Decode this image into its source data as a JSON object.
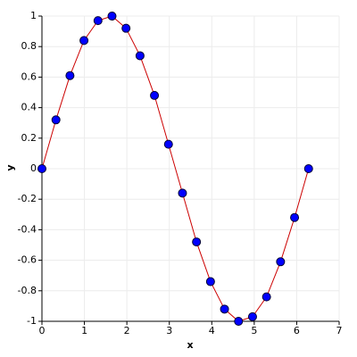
{
  "chart_data": {
    "type": "line",
    "xlabel": "x",
    "ylabel": "y",
    "x": [
      0,
      0.33,
      0.66,
      0.99,
      1.32,
      1.65,
      1.98,
      2.31,
      2.65,
      2.98,
      3.31,
      3.64,
      3.97,
      4.3,
      4.63,
      4.96,
      5.29,
      5.62,
      5.95,
      6.28
    ],
    "values": [
      0,
      0.32,
      0.61,
      0.84,
      0.97,
      1.0,
      0.92,
      0.74,
      0.48,
      0.16,
      -0.16,
      -0.48,
      -0.74,
      -0.92,
      -1.0,
      -0.97,
      -0.84,
      -0.61,
      -0.32,
      0
    ],
    "color": "#cc0000",
    "marker_color": "#0000ff",
    "xlim": [
      0,
      7
    ],
    "xticks": [
      0,
      1,
      2,
      3,
      4,
      5,
      6,
      7
    ],
    "ylim": [
      -1,
      1
    ],
    "yticks": [
      -1,
      -0.8,
      -0.6,
      -0.4,
      -0.2,
      0,
      0.2,
      0.4,
      0.6,
      0.8,
      1
    ],
    "grid": true
  }
}
